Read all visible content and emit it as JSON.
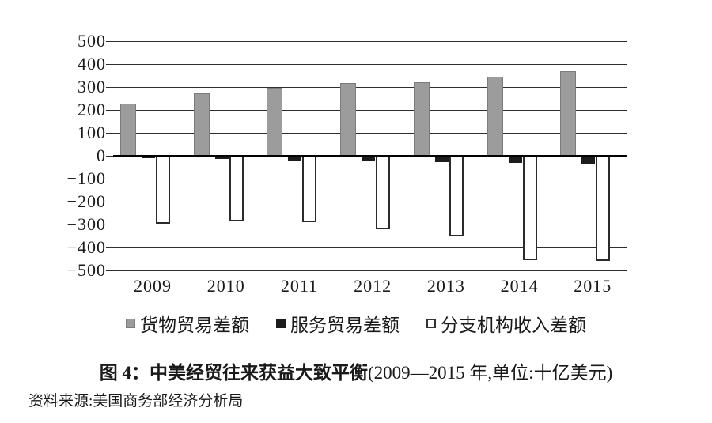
{
  "caption": {
    "title": "图 4：中美经贸往来获益大致平衡",
    "subtitle": "(2009—2015 年,单位:十亿美元)"
  },
  "source": "资料来源:美国商务部经济分析局",
  "legend": [
    {
      "key": "goods",
      "label": "货物贸易差额",
      "swatch_color": "#9c9c9c",
      "style": "filled-gray"
    },
    {
      "key": "services",
      "label": "服务贸易差额",
      "swatch_color": "#1c1c1c",
      "style": "filled-black"
    },
    {
      "key": "branch",
      "label": "分支机构收入差额",
      "swatch_color": "#ffffff",
      "style": "outlined-white"
    }
  ],
  "axis": {
    "ytick_values": [
      500,
      400,
      300,
      200,
      100,
      0,
      -100,
      -200,
      -300,
      -400,
      -500
    ],
    "ytick_labels": [
      "500",
      "400",
      "300",
      "200",
      "100",
      "0",
      "−100",
      "−200",
      "−300",
      "−400",
      "−500"
    ]
  },
  "chart_data": {
    "type": "bar",
    "title": "中美经贸往来获益大致平衡",
    "subtitle": "2009—2015 年, 单位: 十亿美元",
    "categories": [
      "2009",
      "2010",
      "2011",
      "2012",
      "2013",
      "2014",
      "2015"
    ],
    "series": [
      {
        "key": "goods",
        "name": "货物贸易差额",
        "color": "#9c9c9c",
        "values": [
          228,
          273,
          298,
          317,
          322,
          344,
          368
        ]
      },
      {
        "key": "services",
        "name": "服务贸易差额",
        "color": "#1c1c1c",
        "values": [
          -10,
          -15,
          -20,
          -22,
          -27,
          -32,
          -37
        ]
      },
      {
        "key": "branch",
        "name": "分支机构收入差额",
        "color": "#ffffff",
        "values": [
          -295,
          -285,
          -290,
          -320,
          -350,
          -455,
          -460
        ]
      }
    ],
    "xlabel": "",
    "ylabel": "",
    "ylim": [
      -500,
      500
    ],
    "ytick_step": 100,
    "grid": true,
    "legend_position": "bottom",
    "unit": "十亿美元"
  }
}
